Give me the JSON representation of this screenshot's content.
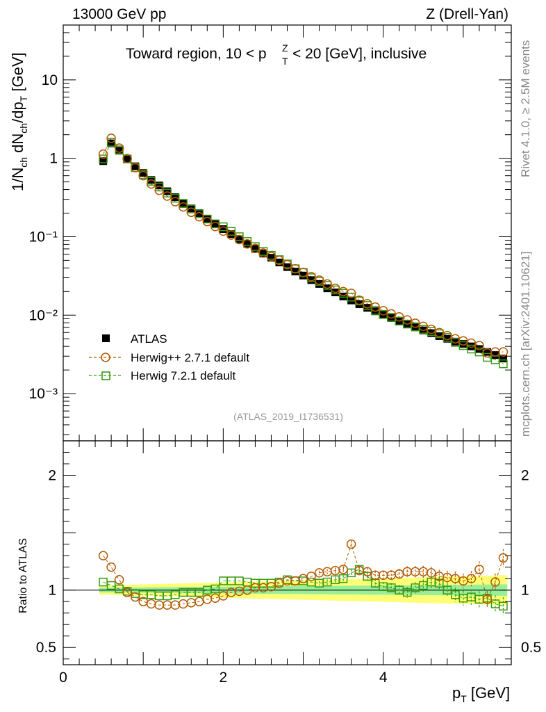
{
  "header": {
    "left": "13000 GeV pp",
    "right": "Z (Drell-Yan)"
  },
  "side": {
    "rivet": "Rivet 4.1.0, ≥ 2.5M events",
    "mcplots": "mcplots.cern.ch [arXiv:2401.10621]"
  },
  "chart_data": {
    "type": "scatter",
    "title": "Toward region, 10 < p_T^Z < 20 [GeV], inclusive",
    "analysis_label": "(ATLAS_2019_I1736531)",
    "xlabel": "p_T [GeV]",
    "ylabel": "1/N_ch dN_ch/dp_T [GeV]",
    "ratio_ylabel": "Ratio to ATLAS",
    "xlim": [
      0,
      5.6
    ],
    "ylim": [
      0.00025,
      50
    ],
    "yscale": "log",
    "ratio_ylim": [
      0.35,
      2.3
    ],
    "x_ticks": [
      0,
      2,
      4
    ],
    "y_ticks": [
      {
        "value": 10,
        "label": "10"
      },
      {
        "value": 1,
        "label": "1"
      },
      {
        "value": 0.1,
        "label": "10⁻¹"
      },
      {
        "value": 0.01,
        "label": "10⁻²"
      },
      {
        "value": 0.001,
        "label": "10⁻³"
      }
    ],
    "ratio_ticks": [
      {
        "value": 2,
        "label": "2"
      },
      {
        "value": 1,
        "label": "1"
      },
      {
        "value": 0.5,
        "label": "0.5"
      }
    ],
    "legend": [
      "ATLAS",
      "Herwig++ 2.7.1 default",
      "Herwig 7.2.1 default"
    ],
    "colors": {
      "atlas": "#000000",
      "herwigpp": "#b35a00",
      "herwig7": "#3a9a10",
      "band_inner": "#99ee99",
      "band_outer": "#ffff77"
    },
    "x": [
      0.5,
      0.6,
      0.7,
      0.8,
      0.9,
      1.0,
      1.1,
      1.2,
      1.3,
      1.4,
      1.5,
      1.6,
      1.7,
      1.8,
      1.9,
      2.0,
      2.1,
      2.2,
      2.3,
      2.4,
      2.5,
      2.6,
      2.7,
      2.8,
      2.9,
      3.0,
      3.1,
      3.2,
      3.3,
      3.4,
      3.5,
      3.6,
      3.7,
      3.8,
      3.9,
      4.0,
      4.1,
      4.2,
      4.3,
      4.4,
      4.5,
      4.6,
      4.7,
      4.8,
      4.9,
      5.0,
      5.1,
      5.2,
      5.3,
      5.4,
      5.5
    ],
    "atlas": [
      0.92,
      1.55,
      1.25,
      0.98,
      0.79,
      0.65,
      0.53,
      0.45,
      0.38,
      0.32,
      0.27,
      0.23,
      0.2,
      0.17,
      0.145,
      0.125,
      0.108,
      0.093,
      0.081,
      0.07,
      0.061,
      0.054,
      0.047,
      0.041,
      0.036,
      0.032,
      0.028,
      0.025,
      0.022,
      0.0195,
      0.0173,
      0.0154,
      0.0138,
      0.0124,
      0.0112,
      0.0101,
      0.0092,
      0.0084,
      0.0077,
      0.007,
      0.0064,
      0.0059,
      0.0054,
      0.005,
      0.0046,
      0.0043,
      0.004,
      0.0037,
      0.0034,
      0.0031,
      0.0028
    ],
    "herwigpp": [
      1.13,
      1.8,
      1.35,
      0.99,
      0.76,
      0.6,
      0.47,
      0.39,
      0.33,
      0.28,
      0.24,
      0.205,
      0.18,
      0.156,
      0.135,
      0.118,
      0.105,
      0.092,
      0.081,
      0.071,
      0.062,
      0.056,
      0.05,
      0.044,
      0.039,
      0.035,
      0.031,
      0.028,
      0.025,
      0.022,
      0.02,
      0.019,
      0.0155,
      0.014,
      0.0127,
      0.0114,
      0.0104,
      0.0095,
      0.0087,
      0.0079,
      0.0072,
      0.0066,
      0.006,
      0.0055,
      0.005,
      0.0047,
      0.0044,
      0.0041,
      0.0033,
      0.0034,
      0.0034
    ],
    "herwig7": [
      0.98,
      1.6,
      1.28,
      0.98,
      0.76,
      0.62,
      0.51,
      0.43,
      0.36,
      0.31,
      0.265,
      0.226,
      0.196,
      0.168,
      0.146,
      0.134,
      0.117,
      0.1,
      0.087,
      0.075,
      0.065,
      0.058,
      0.051,
      0.045,
      0.039,
      0.035,
      0.03,
      0.027,
      0.024,
      0.021,
      0.019,
      0.017,
      0.0152,
      0.0133,
      0.0115,
      0.0102,
      0.0094,
      0.0084,
      0.0077,
      0.0071,
      0.0066,
      0.0062,
      0.0058,
      0.0052,
      0.0045,
      0.0041,
      0.0037,
      0.0034,
      0.0029,
      0.0027,
      0.0024
    ],
    "ratio_herwigpp": [
      1.3,
      1.2,
      1.09,
      0.98,
      0.94,
      0.9,
      0.88,
      0.87,
      0.87,
      0.87,
      0.88,
      0.89,
      0.9,
      0.92,
      0.93,
      0.95,
      0.98,
      0.99,
      1.0,
      1.02,
      1.02,
      1.03,
      1.06,
      1.08,
      1.08,
      1.1,
      1.12,
      1.15,
      1.16,
      1.17,
      1.18,
      1.4,
      1.17,
      1.16,
      1.13,
      1.13,
      1.13,
      1.14,
      1.16,
      1.16,
      1.16,
      1.15,
      1.12,
      1.11,
      1.1,
      1.08,
      1.1,
      1.18,
      0.92,
      1.07,
      1.28
    ],
    "ratio_herwig7": [
      1.07,
      1.04,
      1.01,
      0.99,
      0.97,
      0.96,
      0.96,
      0.95,
      0.95,
      0.96,
      0.98,
      0.98,
      0.98,
      1.0,
      1.01,
      1.08,
      1.08,
      1.08,
      1.07,
      1.06,
      1.06,
      1.06,
      1.07,
      1.09,
      1.08,
      1.08,
      1.07,
      1.06,
      1.07,
      1.09,
      1.1,
      1.15,
      1.18,
      1.12,
      1.06,
      1.03,
      1.02,
      1.0,
      0.98,
      1.02,
      1.04,
      1.07,
      1.06,
      1.0,
      0.96,
      0.93,
      0.94,
      0.92,
      0.93,
      0.88,
      0.86
    ],
    "band_inner": [
      0.98,
      1.02,
      0.95,
      1.05
    ],
    "band_outer": [
      0.96,
      1.04,
      0.87,
      1.13
    ]
  }
}
